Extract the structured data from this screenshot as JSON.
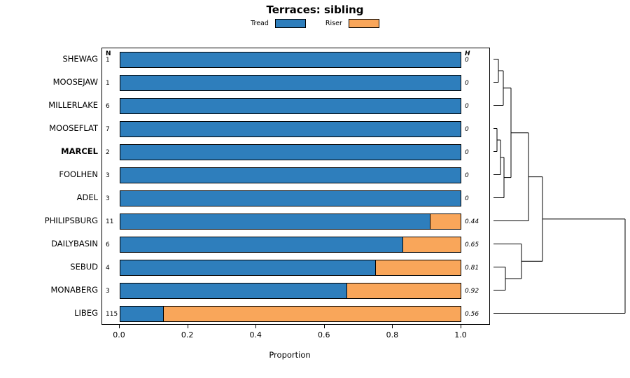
{
  "chart_data": {
    "type": "bar",
    "stacked": true,
    "orientation": "horizontal",
    "title": "Terraces: sibling",
    "xlabel": "Proportion",
    "xlim": [
      0,
      1
    ],
    "x_tick_labels": [
      "0.0",
      "0.2",
      "0.4",
      "0.6",
      "0.8",
      "1.0"
    ],
    "legend_position": "top",
    "grid": false,
    "categories": [
      "SHEWAG",
      "MOOSEJAW",
      "MILLERLAKE",
      "MOOSEFLAT",
      "MARCEL",
      "FOOLHEN",
      "ADEL",
      "PHILIPSBURG",
      "DAILYBASIN",
      "SEBUD",
      "MONABERG",
      "LIBEG"
    ],
    "bold_category": "MARCEL",
    "series": [
      {
        "name": "Tread",
        "color": "#2E7EBC",
        "values": [
          1.0,
          1.0,
          1.0,
          1.0,
          1.0,
          1.0,
          1.0,
          0.91,
          0.83,
          0.75,
          0.665,
          0.13
        ]
      },
      {
        "name": "Riser",
        "color": "#F9A65A",
        "values": [
          0.0,
          0.0,
          0.0,
          0.0,
          0.0,
          0.0,
          0.0,
          0.09,
          0.17,
          0.25,
          0.335,
          0.87
        ]
      }
    ],
    "n_header": "N",
    "n_values": [
      1,
      1,
      6,
      7,
      2,
      3,
      3,
      11,
      6,
      4,
      3,
      115
    ],
    "h_header": "H",
    "h_values": [
      "0",
      "0",
      "0",
      "0",
      "0",
      "0",
      "0",
      "0.44",
      "0.65",
      "0.81",
      "0.92",
      "0.56"
    ],
    "dendrogram_segments": [
      [
        705,
        84.5,
        712,
        84.5
      ],
      [
        705,
        117.5,
        712,
        117.5
      ],
      [
        712,
        84.5,
        712,
        117.5
      ],
      [
        712,
        101,
        719,
        101
      ],
      [
        705,
        150.5,
        719,
        150.5
      ],
      [
        719,
        101,
        719,
        150.5
      ],
      [
        705,
        183.5,
        710,
        183.5
      ],
      [
        705,
        216.5,
        710,
        216.5
      ],
      [
        710,
        183.5,
        710,
        216.5
      ],
      [
        710,
        200,
        715,
        200
      ],
      [
        705,
        249.5,
        715,
        249.5
      ],
      [
        715,
        200,
        715,
        249.5
      ],
      [
        715,
        224.8,
        720,
        224.8
      ],
      [
        705,
        282.5,
        720,
        282.5
      ],
      [
        720,
        224.8,
        720,
        282.5
      ],
      [
        719,
        125.8,
        730,
        125.8
      ],
      [
        720,
        253.6,
        730,
        253.6
      ],
      [
        730,
        125.8,
        730,
        253.6
      ],
      [
        730,
        189.7,
        755,
        189.7
      ],
      [
        705,
        315.5,
        755,
        315.5
      ],
      [
        755,
        189.7,
        755,
        315.5
      ],
      [
        705,
        381.5,
        722,
        381.5
      ],
      [
        705,
        414.5,
        722,
        414.5
      ],
      [
        722,
        381.5,
        722,
        414.5
      ],
      [
        705,
        348.5,
        745,
        348.5
      ],
      [
        722,
        398,
        745,
        398
      ],
      [
        745,
        348.5,
        745,
        398
      ],
      [
        755,
        252.6,
        775,
        252.6
      ],
      [
        745,
        373.3,
        775,
        373.3
      ],
      [
        775,
        252.6,
        775,
        373.3
      ],
      [
        775,
        312.9,
        893,
        312.9
      ],
      [
        705,
        447.5,
        893,
        447.5
      ],
      [
        893,
        312.9,
        893,
        447.5
      ]
    ]
  }
}
